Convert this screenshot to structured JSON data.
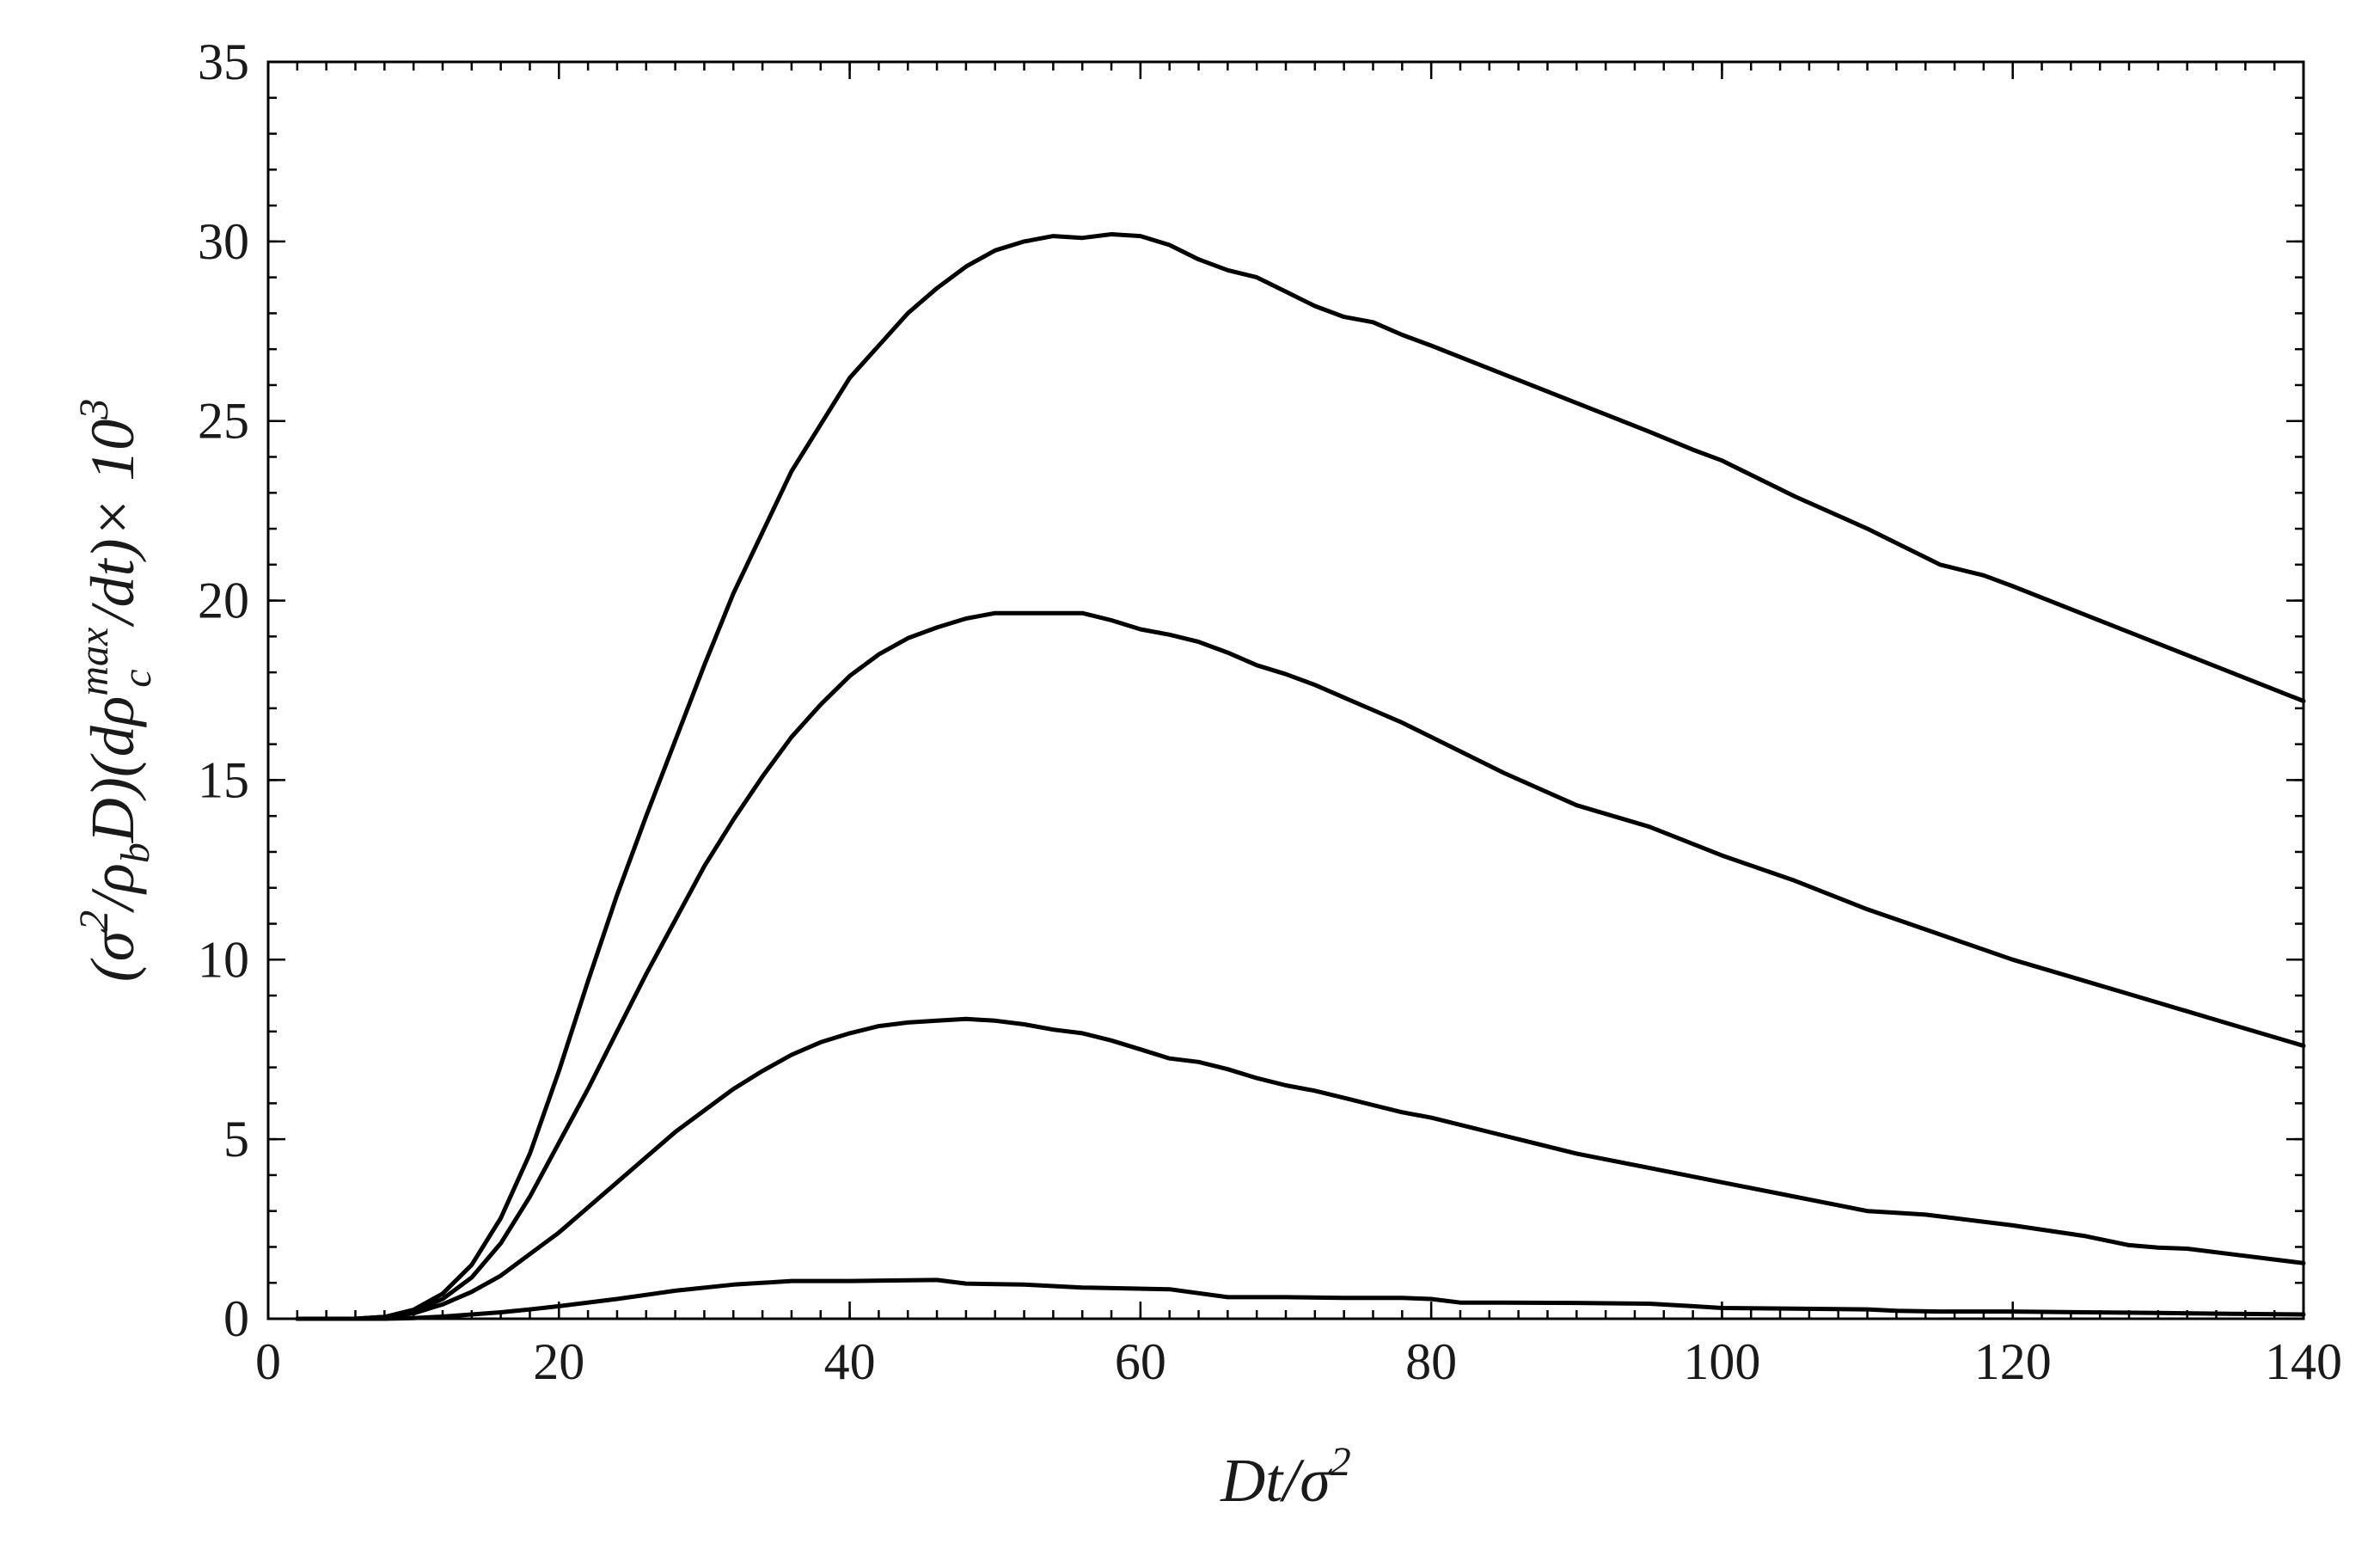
{
  "chart_data": {
    "type": "line",
    "xlabel": {
      "main": "Dt/σ",
      "sup": "2"
    },
    "ylabel": {
      "prefix": "(σ",
      "s1": "2",
      "mid1": "/ρ",
      "sub1": "b",
      "mid2": "D)(dρ",
      "sup2": "max",
      "sub2": "c",
      "mid3": "/dt)× 10",
      "sup3": "3"
    },
    "xlim": [
      0,
      140
    ],
    "ylim": [
      0,
      35
    ],
    "xticks": [
      0,
      20,
      40,
      60,
      80,
      100,
      120,
      140
    ],
    "xtick_labels": [
      "0",
      "20",
      "40",
      "60",
      "80",
      "100",
      "120",
      "140"
    ],
    "yticks": [
      0,
      5,
      10,
      15,
      20,
      25,
      30,
      35
    ],
    "ytick_labels": [
      "0",
      "5",
      "10",
      "15",
      "20",
      "25",
      "30",
      "35"
    ],
    "x_minor_step": 2,
    "y_minor_step": 1,
    "grid": false,
    "series": [
      {
        "x": [
          2,
          4,
          6,
          8,
          10,
          12,
          14,
          16,
          18,
          20,
          22,
          24,
          26,
          28,
          30,
          32,
          34,
          36,
          38,
          40,
          42,
          44,
          46,
          48,
          50,
          52,
          54,
          56,
          58,
          60,
          62,
          64,
          66,
          68,
          70,
          72,
          74,
          76,
          78,
          80,
          85,
          90,
          95,
          98,
          100,
          105,
          110,
          115,
          118,
          120,
          125,
          130,
          135,
          140
        ],
        "y": [
          0,
          0,
          0,
          0.05,
          0.25,
          0.7,
          1.5,
          2.8,
          4.6,
          6.9,
          9.4,
          11.8,
          14.0,
          16.1,
          18.2,
          20.2,
          21.9,
          23.6,
          24.9,
          26.2,
          27.1,
          28.0,
          28.7,
          29.3,
          29.75,
          30.0,
          30.15,
          30.1,
          30.2,
          30.15,
          29.9,
          29.5,
          29.2,
          29.0,
          28.6,
          28.2,
          27.9,
          27.75,
          27.4,
          27.1,
          26.3,
          25.5,
          24.7,
          24.2,
          23.9,
          22.9,
          22.0,
          21.0,
          20.7,
          20.4,
          19.6,
          18.8,
          18.0,
          17.2
        ]
      },
      {
        "x": [
          2,
          4,
          6,
          8,
          10,
          12,
          14,
          16,
          18,
          20,
          22,
          24,
          26,
          28,
          30,
          32,
          34,
          36,
          38,
          40,
          42,
          44,
          46,
          48,
          50,
          52,
          54,
          56,
          58,
          60,
          62,
          64,
          66,
          68,
          70,
          72,
          74,
          76,
          78,
          80,
          85,
          90,
          95,
          100,
          105,
          110,
          115,
          120,
          125,
          130,
          135,
          140
        ],
        "y": [
          0,
          0,
          0,
          0.05,
          0.2,
          0.55,
          1.15,
          2.1,
          3.4,
          4.9,
          6.4,
          8.0,
          9.6,
          11.1,
          12.6,
          13.9,
          15.1,
          16.2,
          17.1,
          17.9,
          18.5,
          18.95,
          19.25,
          19.5,
          19.65,
          19.65,
          19.65,
          19.65,
          19.45,
          19.2,
          19.05,
          18.85,
          18.55,
          18.2,
          17.95,
          17.65,
          17.3,
          16.95,
          16.6,
          16.2,
          15.2,
          14.3,
          13.7,
          12.9,
          12.2,
          11.4,
          10.7,
          10.0,
          9.4,
          8.8,
          8.2,
          7.6
        ]
      },
      {
        "x": [
          2,
          4,
          6,
          8,
          10,
          12,
          14,
          16,
          18,
          20,
          22,
          24,
          26,
          28,
          30,
          32,
          34,
          36,
          38,
          40,
          42,
          44,
          46,
          48,
          50,
          52,
          54,
          56,
          58,
          60,
          62,
          64,
          66,
          68,
          70,
          72,
          74,
          76,
          78,
          80,
          85,
          90,
          95,
          100,
          105,
          110,
          112,
          114,
          116,
          120,
          125,
          128,
          130,
          132,
          135,
          140
        ],
        "y": [
          0,
          0,
          0,
          0.05,
          0.15,
          0.4,
          0.75,
          1.2,
          1.8,
          2.4,
          3.1,
          3.8,
          4.5,
          5.2,
          5.8,
          6.4,
          6.9,
          7.35,
          7.7,
          7.95,
          8.15,
          8.25,
          8.3,
          8.35,
          8.3,
          8.2,
          8.05,
          7.95,
          7.75,
          7.5,
          7.25,
          7.15,
          6.95,
          6.7,
          6.5,
          6.35,
          6.15,
          5.95,
          5.75,
          5.6,
          5.1,
          4.6,
          4.2,
          3.8,
          3.4,
          3.0,
          2.95,
          2.9,
          2.8,
          2.6,
          2.3,
          2.05,
          1.98,
          1.95,
          1.8,
          1.55
        ]
      },
      {
        "x": [
          2,
          4,
          6,
          8,
          10,
          12,
          14,
          16,
          18,
          20,
          24,
          28,
          32,
          36,
          40,
          46,
          48,
          52,
          56,
          62,
          66,
          70,
          74,
          78,
          80,
          82,
          85,
          90,
          95,
          98,
          100,
          105,
          110,
          112,
          115,
          120,
          125,
          130,
          135,
          140
        ],
        "y": [
          0,
          0,
          0,
          0,
          0.02,
          0.06,
          0.12,
          0.18,
          0.26,
          0.35,
          0.55,
          0.78,
          0.95,
          1.05,
          1.05,
          1.08,
          0.98,
          0.95,
          0.87,
          0.82,
          0.6,
          0.6,
          0.58,
          0.58,
          0.55,
          0.45,
          0.45,
          0.44,
          0.42,
          0.35,
          0.3,
          0.28,
          0.26,
          0.22,
          0.2,
          0.2,
          0.18,
          0.16,
          0.14,
          0.12
        ]
      }
    ]
  }
}
